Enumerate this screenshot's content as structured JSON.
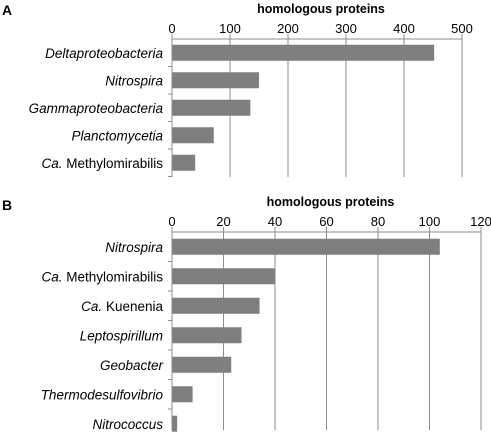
{
  "chart_data": [
    {
      "type": "bar",
      "orientation": "horizontal",
      "panel": "A",
      "xlabel": "homologous proteins",
      "xlim": [
        0,
        500
      ],
      "xticks": [
        0,
        100,
        200,
        300,
        400,
        500
      ],
      "axis_position": "top",
      "grid": true,
      "bar_color": "#7f7f7f",
      "categories": [
        {
          "prefix": "",
          "name": "Deltaproteobacteria"
        },
        {
          "prefix": "",
          "name": "Nitrospira"
        },
        {
          "prefix": "",
          "name": "Gammaproteobacteria"
        },
        {
          "prefix": "",
          "name": "Planctomycetia"
        },
        {
          "prefix": "Ca.",
          "name": "Methylomirabilis"
        }
      ],
      "values": [
        452,
        150,
        135,
        72,
        40
      ]
    },
    {
      "type": "bar",
      "orientation": "horizontal",
      "panel": "B",
      "xlabel": "homologous proteins",
      "xlim": [
        0,
        120
      ],
      "xticks": [
        0,
        20,
        40,
        60,
        80,
        100,
        120
      ],
      "axis_position": "top",
      "grid": true,
      "bar_color": "#7f7f7f",
      "categories": [
        {
          "prefix": "",
          "name": "Nitrospira"
        },
        {
          "prefix": "Ca.",
          "name": "Methylomirabilis"
        },
        {
          "prefix": "Ca.",
          "name": "Kuenenia"
        },
        {
          "prefix": "",
          "name": "Leptospirillum"
        },
        {
          "prefix": "",
          "name": "Geobacter"
        },
        {
          "prefix": "",
          "name": "Thermodesulfovibrio"
        },
        {
          "prefix": "",
          "name": "Nitrococcus"
        }
      ],
      "values": [
        104,
        40,
        34,
        27,
        23,
        8,
        2
      ]
    }
  ]
}
